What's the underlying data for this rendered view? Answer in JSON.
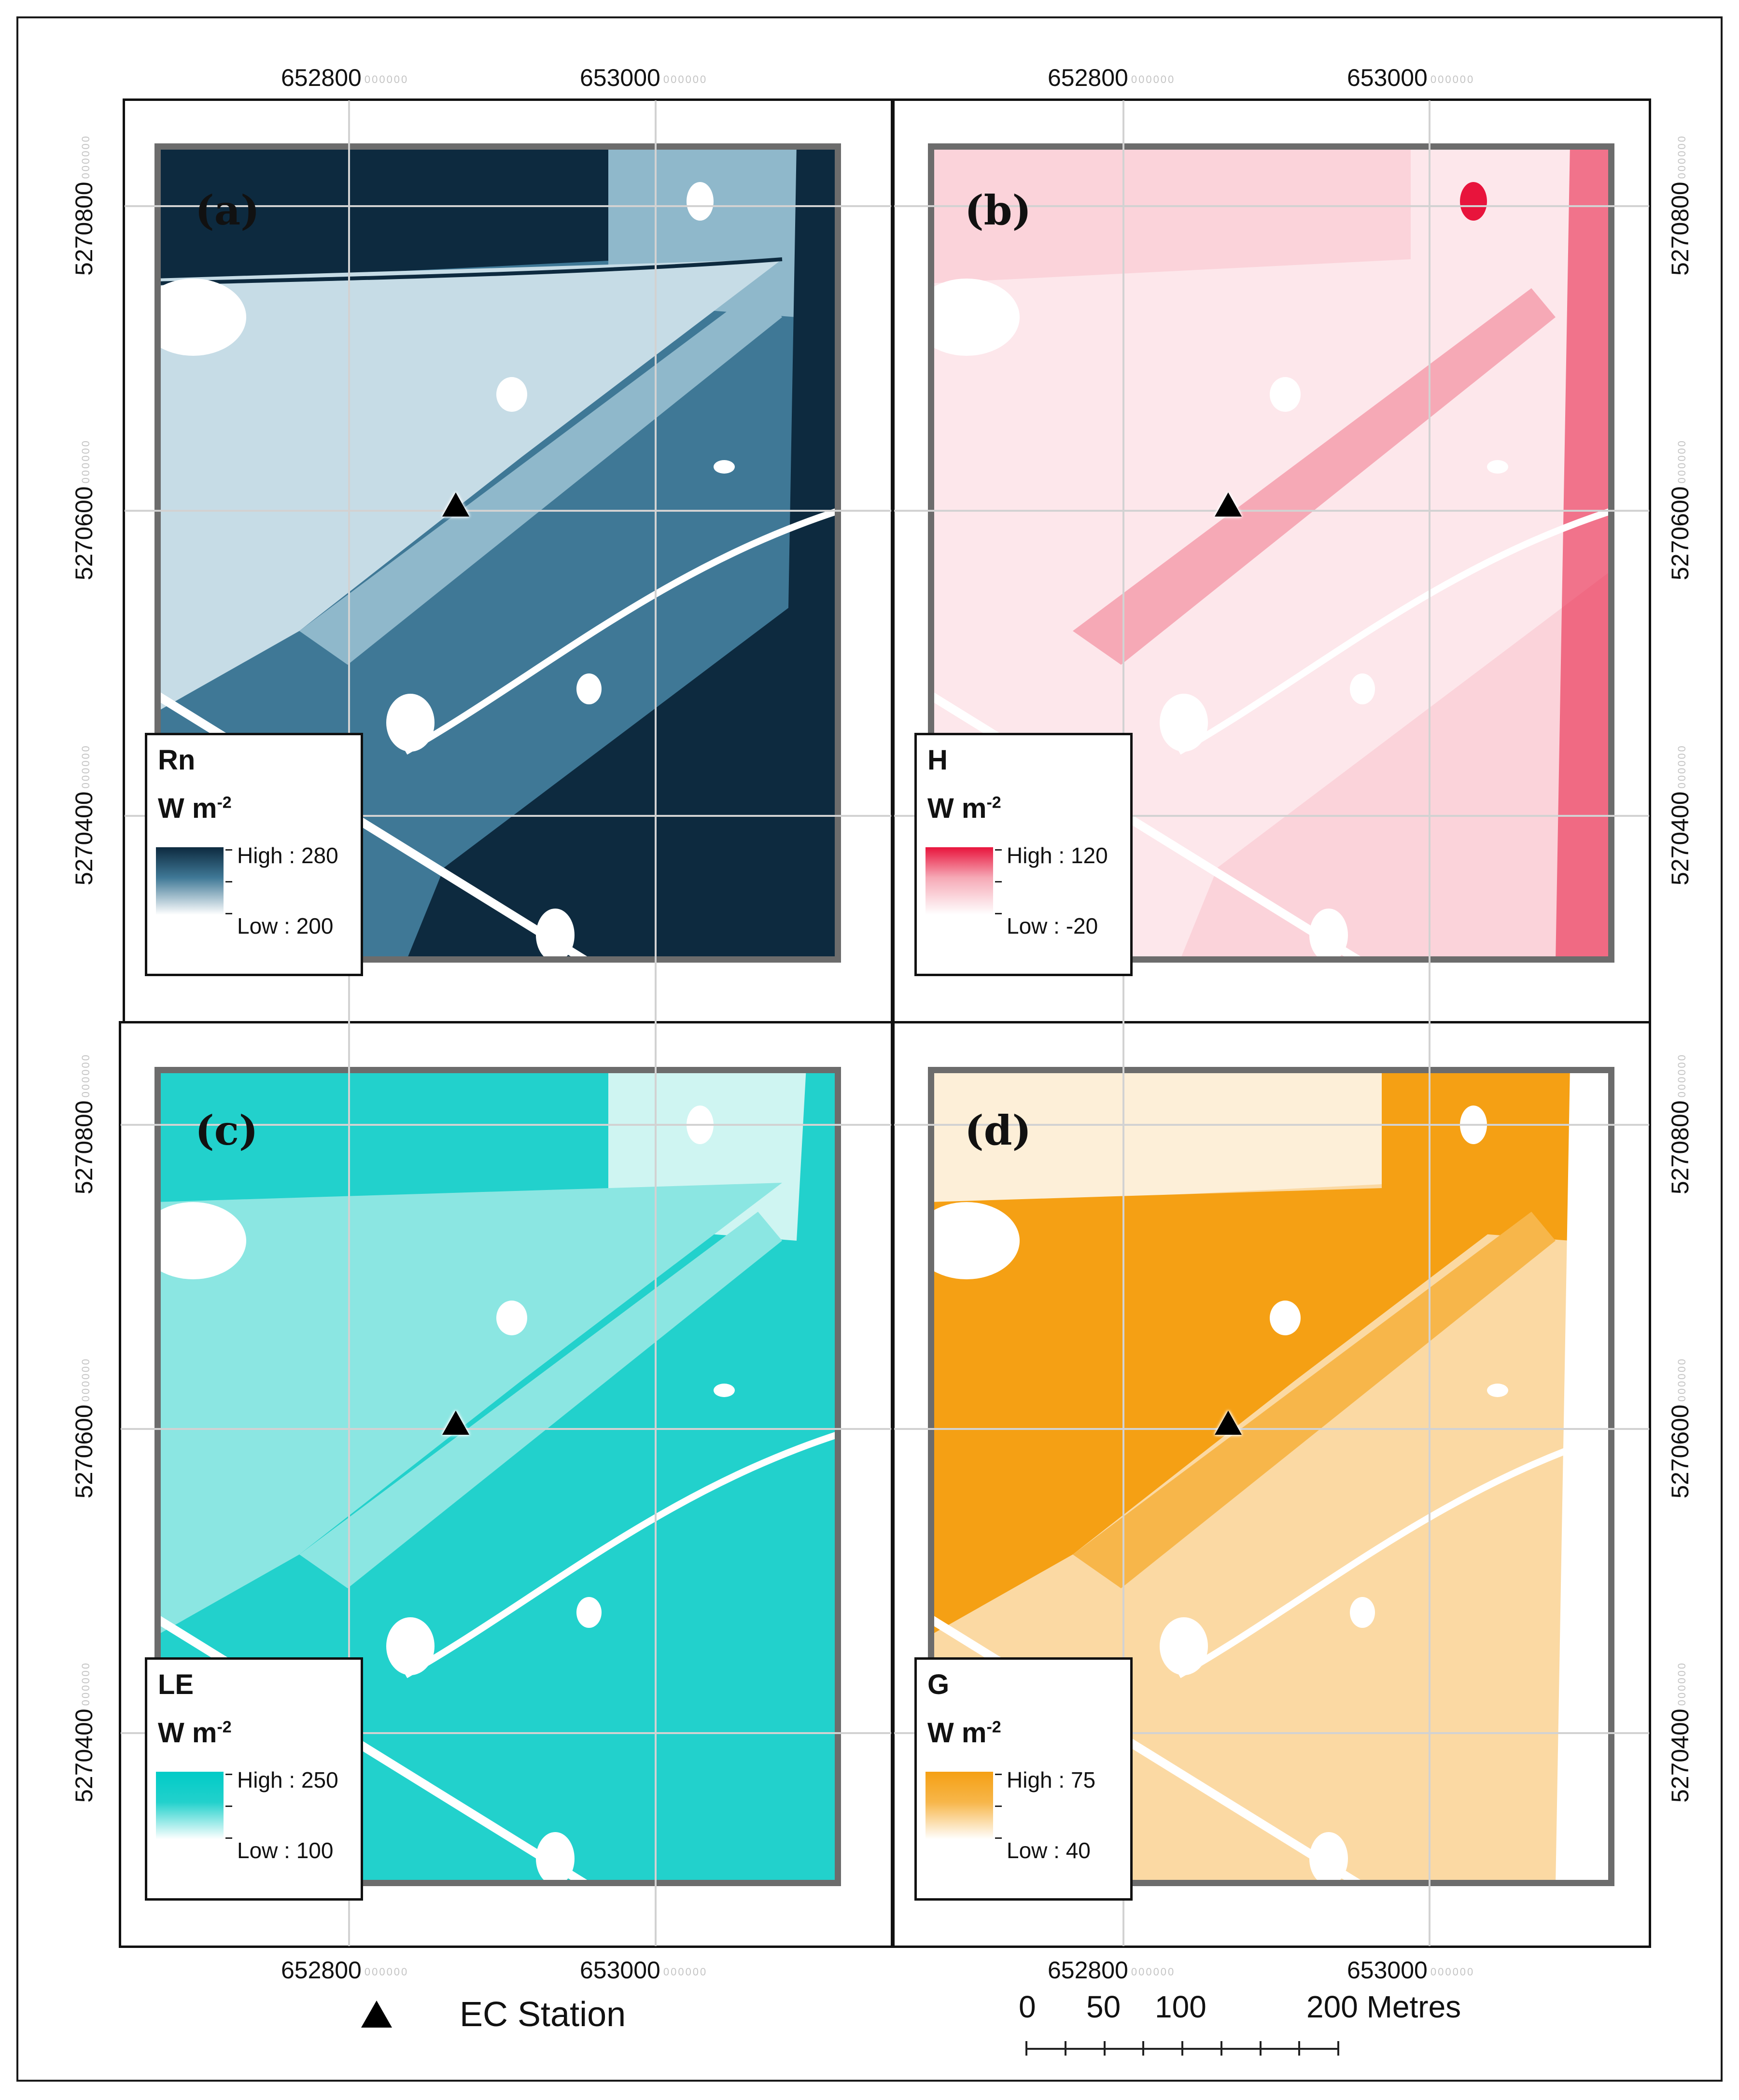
{
  "figure": {
    "x_ticks": [
      "652800",
      "653000"
    ],
    "y_ticks": [
      "5270800",
      "5270600",
      "5270400"
    ],
    "tick_suffix": "000000",
    "panels": [
      {
        "id": "a",
        "label": "(a)",
        "variable": "Rn",
        "unit": "W m",
        "unit_exp": "-2",
        "high": "High : 280",
        "low": "Low : 200",
        "colors": {
          "dark": "#0d2a3f",
          "mid": "#3f7896",
          "light": "#8fb8cb",
          "pale": "#c6dce6"
        }
      },
      {
        "id": "b",
        "label": "(b)",
        "variable": "H",
        "unit": "W m",
        "unit_exp": "-2",
        "high": "High : 120",
        "low": "Low : -20",
        "colors": {
          "dark": "#e8143c",
          "mid": "#f6a9b6",
          "light": "#fbd3da",
          "pale": "#fde7eb"
        }
      },
      {
        "id": "c",
        "label": "(c)",
        "variable": "LE",
        "unit": "W m",
        "unit_exp": "-2",
        "high": "High : 250",
        "low": "Low : 100",
        "colors": {
          "dark": "#00cbc7",
          "mid": "#22d1cc",
          "light": "#8be6e2",
          "pale": "#cff5f2"
        }
      },
      {
        "id": "d",
        "label": "(d)",
        "variable": "G",
        "unit": "W m",
        "unit_exp": "-2",
        "high": "High : 75",
        "low": "Low : 40",
        "colors": {
          "dark": "#f5a014",
          "mid": "#f7b64a",
          "light": "#fbd9a3",
          "pale": "#fdefd8"
        }
      }
    ]
  },
  "bottom_legend": {
    "station_label": "EC Station",
    "scale_labels": [
      "0",
      "50",
      "100",
      "200 Metres"
    ],
    "scale_values_m": [
      0,
      50,
      100,
      200
    ]
  }
}
